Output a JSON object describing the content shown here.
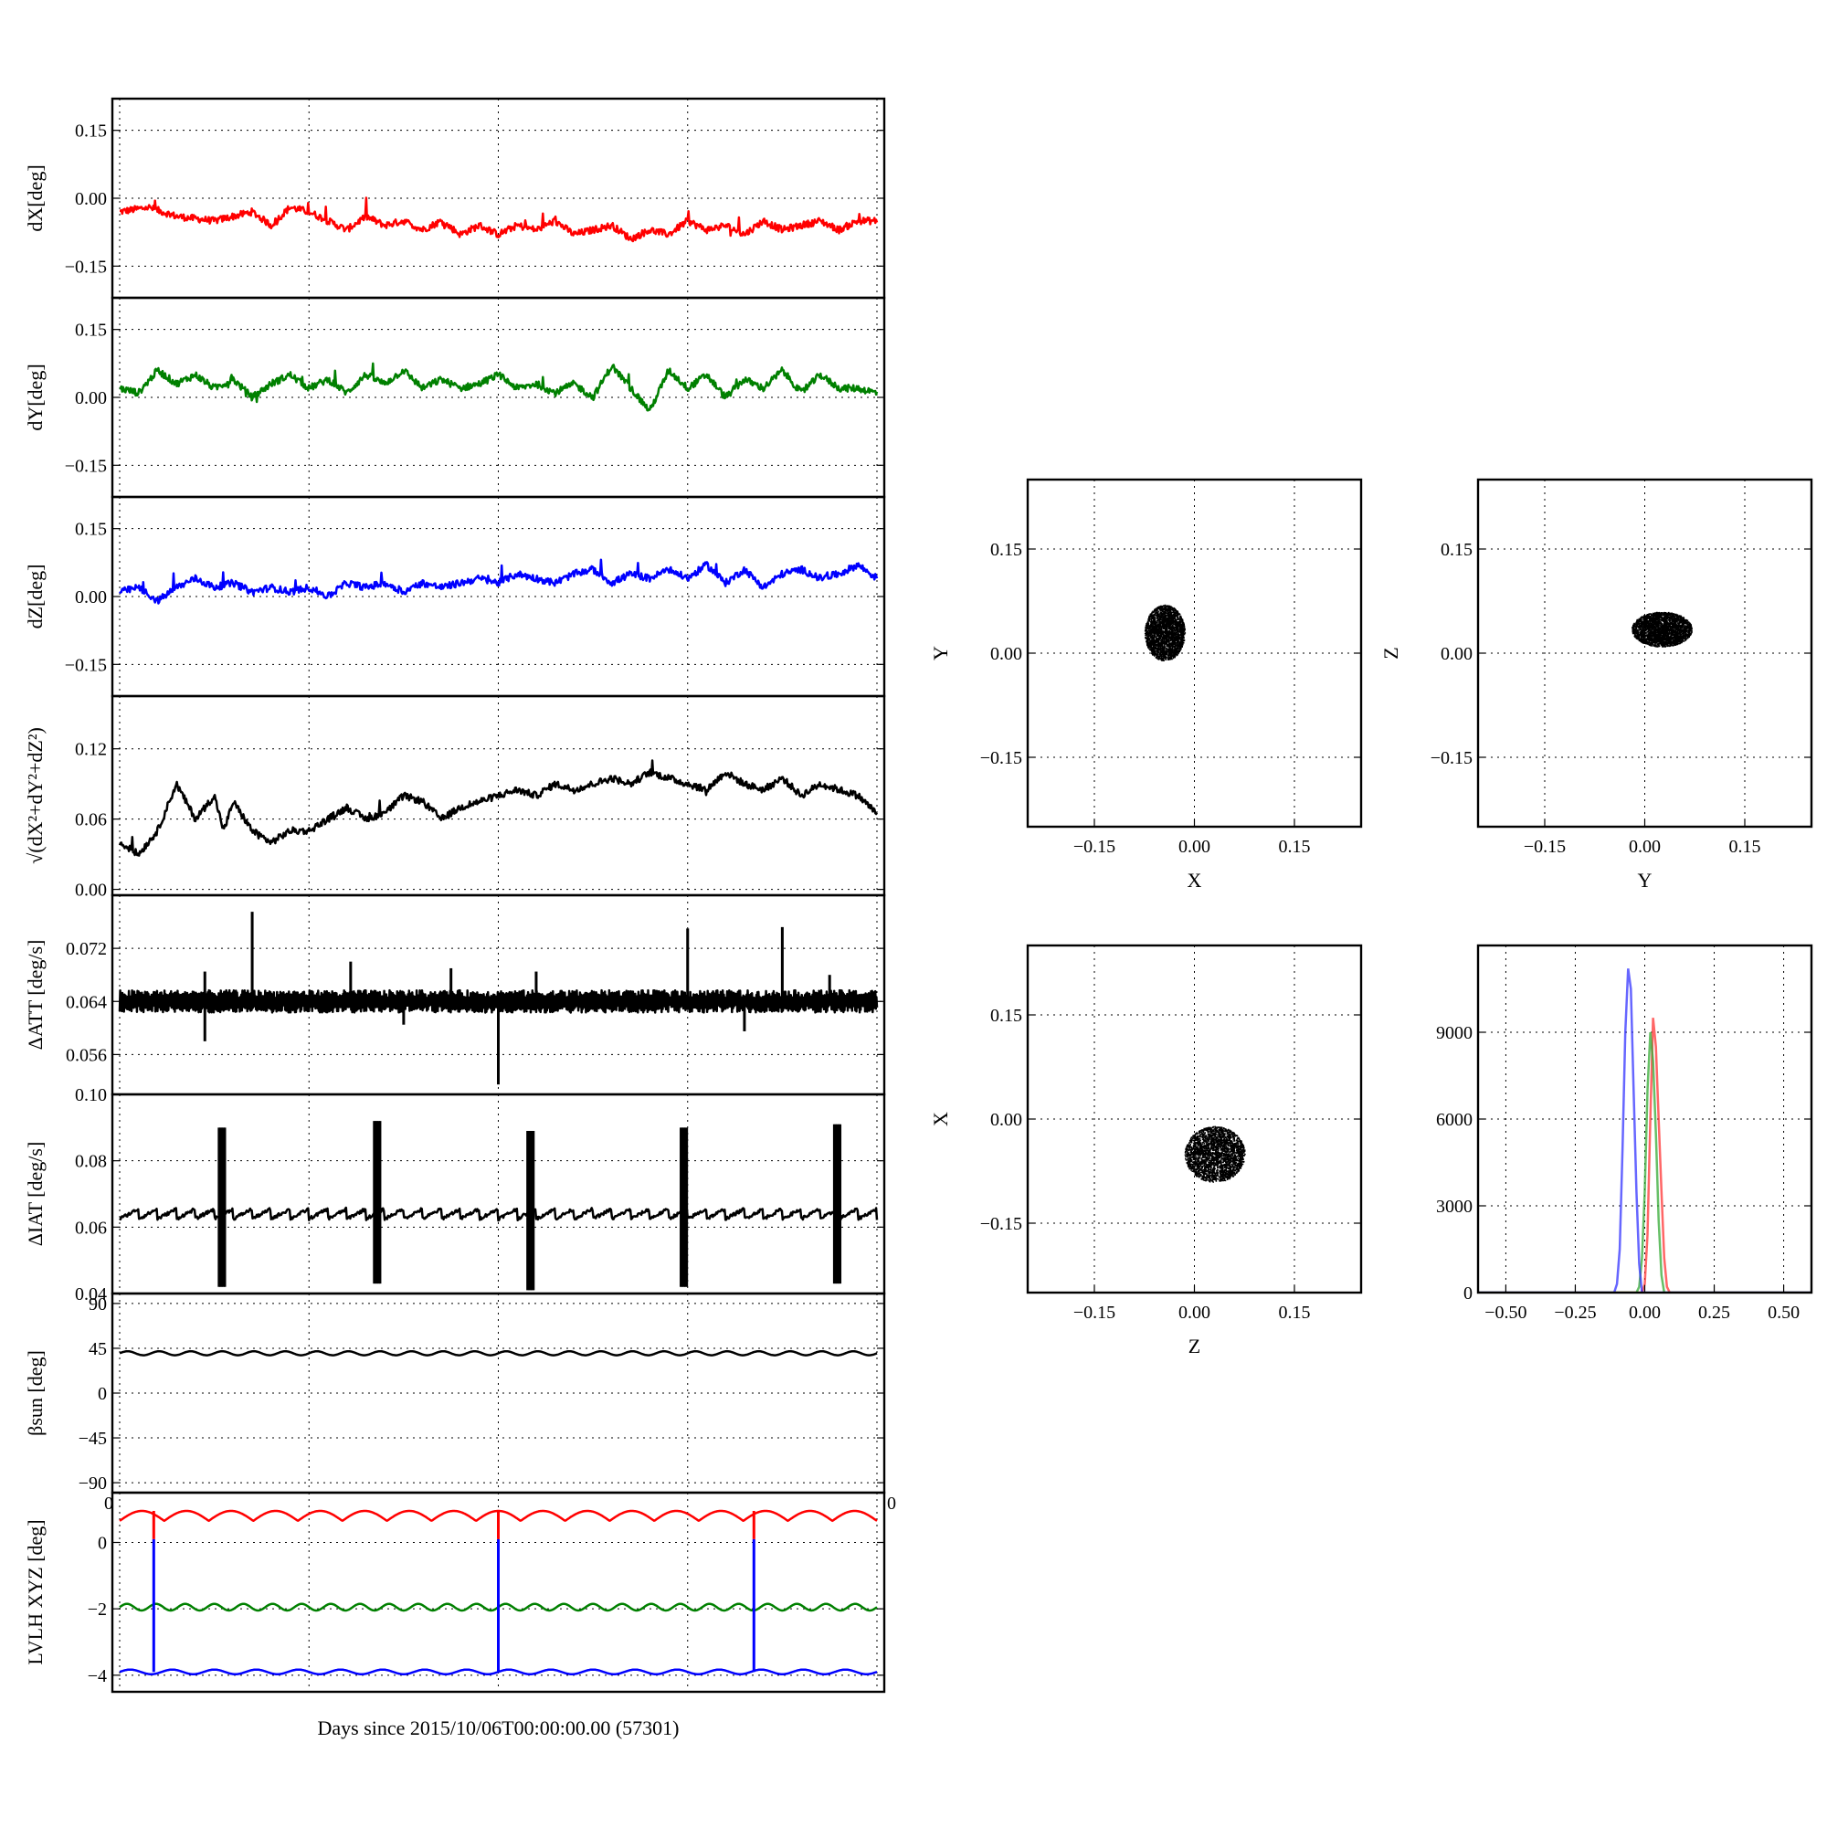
{
  "chart_data": [
    {
      "id": "dx",
      "type": "line",
      "ylabel": "dX[deg]",
      "ylim": [
        -0.22,
        0.22
      ],
      "yticks": [
        0.15,
        0.0,
        -0.15
      ],
      "ytick_labels": [
        "0.15",
        "0.00",
        "−0.15"
      ],
      "xlim": [
        0,
        4
      ],
      "grid": true,
      "series": [
        {
          "color": "#ff0000",
          "linewidth": 2.5,
          "x": [
            0,
            0.15,
            0.3,
            0.5,
            0.7,
            0.8,
            0.9,
            1.0,
            1.1,
            1.2,
            1.3,
            1.4,
            1.5,
            1.6,
            1.7,
            1.8,
            1.9,
            2.0,
            2.1,
            2.2,
            2.3,
            2.4,
            2.5,
            2.6,
            2.7,
            2.8,
            2.9,
            3.0,
            3.1,
            3.2,
            3.3,
            3.4,
            3.5,
            3.6,
            3.7,
            3.8,
            3.9,
            4.0
          ],
          "y": [
            -0.03,
            -0.02,
            -0.04,
            -0.05,
            -0.03,
            -0.06,
            -0.02,
            -0.03,
            -0.05,
            -0.07,
            -0.04,
            -0.06,
            -0.05,
            -0.07,
            -0.05,
            -0.08,
            -0.06,
            -0.08,
            -0.06,
            -0.07,
            -0.05,
            -0.08,
            -0.07,
            -0.06,
            -0.09,
            -0.07,
            -0.08,
            -0.05,
            -0.07,
            -0.06,
            -0.08,
            -0.05,
            -0.07,
            -0.06,
            -0.05,
            -0.07,
            -0.05,
            -0.05
          ]
        }
      ]
    },
    {
      "id": "dy",
      "type": "line",
      "ylabel": "dY[deg]",
      "ylim": [
        -0.22,
        0.22
      ],
      "yticks": [
        0.15,
        0.0,
        -0.15
      ],
      "ytick_labels": [
        "0.15",
        "0.00",
        "−0.15"
      ],
      "xlim": [
        0,
        4
      ],
      "grid": true,
      "series": [
        {
          "color": "#008000",
          "linewidth": 2.5,
          "x": [
            0,
            0.1,
            0.2,
            0.3,
            0.4,
            0.5,
            0.6,
            0.7,
            0.8,
            0.9,
            1.0,
            1.1,
            1.2,
            1.3,
            1.4,
            1.5,
            1.6,
            1.7,
            1.8,
            1.9,
            2.0,
            2.1,
            2.2,
            2.3,
            2.4,
            2.5,
            2.6,
            2.7,
            2.8,
            2.9,
            3.0,
            3.1,
            3.2,
            3.3,
            3.4,
            3.5,
            3.6,
            3.7,
            3.8,
            3.9,
            4.0
          ],
          "y": [
            0.02,
            0.01,
            0.06,
            0.03,
            0.05,
            0.02,
            0.04,
            0.0,
            0.03,
            0.05,
            0.02,
            0.04,
            0.01,
            0.05,
            0.03,
            0.06,
            0.02,
            0.04,
            0.02,
            0.03,
            0.05,
            0.02,
            0.03,
            0.01,
            0.03,
            0.0,
            0.07,
            0.02,
            -0.03,
            0.06,
            0.02,
            0.05,
            0.0,
            0.04,
            0.02,
            0.06,
            0.01,
            0.05,
            0.02,
            0.02,
            0.01
          ]
        }
      ]
    },
    {
      "id": "dz",
      "type": "line",
      "ylabel": "dZ[deg]",
      "ylim": [
        -0.22,
        0.22
      ],
      "yticks": [
        0.15,
        0.0,
        -0.15
      ],
      "ytick_labels": [
        "0.15",
        "0.00",
        "−0.15"
      ],
      "xlim": [
        0,
        4
      ],
      "grid": true,
      "series": [
        {
          "color": "#0000ff",
          "linewidth": 2.5,
          "x": [
            0,
            0.1,
            0.2,
            0.3,
            0.4,
            0.5,
            0.6,
            0.7,
            0.8,
            0.9,
            1.0,
            1.1,
            1.2,
            1.3,
            1.4,
            1.5,
            1.6,
            1.7,
            1.8,
            1.9,
            2.0,
            2.1,
            2.2,
            2.3,
            2.4,
            2.5,
            2.6,
            2.7,
            2.8,
            2.9,
            3.0,
            3.1,
            3.2,
            3.3,
            3.4,
            3.5,
            3.6,
            3.7,
            3.8,
            3.9,
            4.0
          ],
          "y": [
            0.01,
            0.02,
            -0.01,
            0.02,
            0.04,
            0.02,
            0.03,
            0.01,
            0.02,
            0.01,
            0.02,
            0.0,
            0.03,
            0.02,
            0.03,
            0.01,
            0.03,
            0.02,
            0.03,
            0.04,
            0.03,
            0.05,
            0.04,
            0.03,
            0.05,
            0.06,
            0.03,
            0.05,
            0.04,
            0.06,
            0.04,
            0.07,
            0.03,
            0.06,
            0.02,
            0.05,
            0.06,
            0.04,
            0.05,
            0.07,
            0.04
          ]
        }
      ]
    },
    {
      "id": "dr",
      "type": "line",
      "ylabel": "√(dX²+dY²+dZ²)",
      "ylim": [
        -0.005,
        0.165
      ],
      "yticks": [
        0.12,
        0.06,
        0.0
      ],
      "ytick_labels": [
        "0.12",
        "0.06",
        "0.00"
      ],
      "xlim": [
        0,
        4
      ],
      "grid": true,
      "series": [
        {
          "color": "#000000",
          "linewidth": 2.5,
          "x": [
            0,
            0.1,
            0.2,
            0.3,
            0.4,
            0.5,
            0.55,
            0.6,
            0.7,
            0.8,
            0.9,
            1.0,
            1.1,
            1.2,
            1.3,
            1.4,
            1.5,
            1.6,
            1.7,
            1.8,
            1.9,
            2.0,
            2.1,
            2.2,
            2.3,
            2.4,
            2.5,
            2.6,
            2.7,
            2.8,
            2.9,
            3.0,
            3.1,
            3.2,
            3.3,
            3.4,
            3.5,
            3.6,
            3.7,
            3.8,
            3.9,
            4.0
          ],
          "y": [
            0.04,
            0.03,
            0.05,
            0.09,
            0.06,
            0.08,
            0.05,
            0.075,
            0.05,
            0.04,
            0.05,
            0.05,
            0.06,
            0.07,
            0.06,
            0.065,
            0.08,
            0.075,
            0.06,
            0.07,
            0.075,
            0.08,
            0.085,
            0.08,
            0.09,
            0.085,
            0.09,
            0.095,
            0.09,
            0.1,
            0.095,
            0.09,
            0.085,
            0.1,
            0.09,
            0.085,
            0.095,
            0.08,
            0.09,
            0.085,
            0.08,
            0.065
          ]
        }
      ]
    },
    {
      "id": "datt",
      "type": "line",
      "ylabel": "ΔATT [deg/s]",
      "ylim": [
        0.05,
        0.08
      ],
      "yticks": [
        0.072,
        0.064,
        0.056
      ],
      "ytick_labels": [
        "0.072",
        "0.064",
        "0.056"
      ],
      "xlim": [
        0,
        4
      ],
      "grid": true,
      "series": [
        {
          "color": "#000000",
          "linewidth": 2.5,
          "baseline": 0.064,
          "jitter": 0.0012,
          "spikes": [
            {
              "x": 0.45,
              "y": 0.0685
            },
            {
              "x": 0.45,
              "y": 0.058
            },
            {
              "x": 0.7,
              "y": 0.0775
            },
            {
              "x": 1.22,
              "y": 0.07
            },
            {
              "x": 1.5,
              "y": 0.0605
            },
            {
              "x": 1.75,
              "y": 0.069
            },
            {
              "x": 2.0,
              "y": 0.0515
            },
            {
              "x": 2.2,
              "y": 0.0685
            },
            {
              "x": 3.0,
              "y": 0.075
            },
            {
              "x": 3.3,
              "y": 0.0595
            },
            {
              "x": 3.5,
              "y": 0.0752
            },
            {
              "x": 3.75,
              "y": 0.068
            }
          ]
        }
      ]
    },
    {
      "id": "diat",
      "type": "line",
      "ylabel": "ΔIAT [deg/s]",
      "ylim": [
        0.04,
        0.1
      ],
      "yticks": [
        0.1,
        0.08,
        0.06,
        0.04
      ],
      "ytick_labels": [
        "0.10",
        "0.08",
        "0.06",
        "0.04"
      ],
      "xlim": [
        0,
        4
      ],
      "grid": true,
      "series": [
        {
          "color": "#000000",
          "linewidth": 2.5,
          "baseline": 0.064,
          "sawtooth": 0.003,
          "bursts": [
            {
              "x": 0.54,
              "high": 0.09,
              "low": 0.042
            },
            {
              "x": 1.36,
              "high": 0.092,
              "low": 0.043
            },
            {
              "x": 2.17,
              "high": 0.089,
              "low": 0.041
            },
            {
              "x": 2.98,
              "high": 0.09,
              "low": 0.042
            },
            {
              "x": 3.79,
              "high": 0.091,
              "low": 0.043
            }
          ]
        }
      ]
    },
    {
      "id": "beta",
      "type": "line",
      "ylabel": "βsun [deg]",
      "ylim": [
        -100,
        100
      ],
      "yticks": [
        90,
        45,
        0,
        -45,
        -90
      ],
      "ytick_labels": [
        "90",
        "45",
        "0",
        "−45",
        "−90"
      ],
      "xlim": [
        0,
        4
      ],
      "grid": true,
      "series": [
        {
          "color": "#000000",
          "linewidth": 2.5,
          "mean": 40,
          "amplitude": 2,
          "cycles": 24
        }
      ]
    },
    {
      "id": "lvlh",
      "type": "line",
      "ylabel": "LVLH XYZ [deg]",
      "ylim": [
        -4.5,
        1.5
      ],
      "yticks": [
        0,
        -2,
        -4
      ],
      "ytick_labels": [
        "0",
        "−2",
        "−4"
      ],
      "xlim": [
        0,
        4
      ],
      "grid": true,
      "xlabel": "Days since 2015/10/06T00:00:00.00 (57301)",
      "xtick_labels_top": [
        "0",
        "0"
      ],
      "series": [
        {
          "color": "#ff0000",
          "linewidth": 2.5,
          "mean": 0.8,
          "amplitude": 0.3,
          "cycles": 17
        },
        {
          "color": "#008000",
          "linewidth": 2.5,
          "mean": -1.95,
          "amplitude": 0.1,
          "cycles": 26
        },
        {
          "color": "#0000ff",
          "linewidth": 2.5,
          "mean": -3.9,
          "amplitude": 0.07,
          "cycles": 18,
          "jumps": [
            {
              "x": 0.18,
              "top": 0.1
            },
            {
              "x": 2.0,
              "top": 0.1
            },
            {
              "x": 3.35,
              "top": 0.1
            }
          ]
        }
      ]
    },
    {
      "id": "xy",
      "type": "scatter",
      "xlabel": "X",
      "ylabel": "Y",
      "xlim": [
        -0.25,
        0.25
      ],
      "ylim": [
        -0.25,
        0.25
      ],
      "xticks": [
        -0.15,
        0.0,
        0.15
      ],
      "yticks": [
        0.15,
        0.0,
        -0.15
      ],
      "xtick_labels": [
        "−0.15",
        "0.00",
        "0.15"
      ],
      "ytick_labels": [
        "0.15",
        "0.00",
        "−0.15"
      ],
      "grid": true,
      "color": "#000000",
      "cloud": {
        "cx": -0.045,
        "cy": 0.03,
        "rx": 0.03,
        "ry": 0.04
      }
    },
    {
      "id": "yz",
      "type": "scatter",
      "xlabel": "Y",
      "ylabel": "Z",
      "xlim": [
        -0.25,
        0.25
      ],
      "ylim": [
        -0.25,
        0.25
      ],
      "xticks": [
        -0.15,
        0.0,
        0.15
      ],
      "yticks": [
        0.15,
        0.0,
        -0.15
      ],
      "xtick_labels": [
        "−0.15",
        "0.00",
        "0.15"
      ],
      "ytick_labels": [
        "0.15",
        "0.00",
        "−0.15"
      ],
      "grid": true,
      "color": "#000000",
      "cloud": {
        "cx": 0.025,
        "cy": 0.035,
        "rx": 0.045,
        "ry": 0.025
      }
    },
    {
      "id": "zx",
      "type": "scatter",
      "xlabel": "Z",
      "ylabel": "X",
      "xlim": [
        -0.25,
        0.25
      ],
      "ylim": [
        -0.25,
        0.25
      ],
      "xticks": [
        -0.15,
        0.0,
        0.15
      ],
      "yticks": [
        0.15,
        0.0,
        -0.15
      ],
      "xtick_labels": [
        "−0.15",
        "0.00",
        "0.15"
      ],
      "ytick_labels": [
        "0.15",
        "0.00",
        "−0.15"
      ],
      "grid": true,
      "color": "#000000",
      "cloud": {
        "cx": 0.03,
        "cy": -0.05,
        "rx": 0.045,
        "ry": 0.04
      }
    },
    {
      "id": "hist",
      "type": "line",
      "xlim": [
        -0.6,
        0.6
      ],
      "ylim": [
        0,
        12000
      ],
      "xticks": [
        -0.5,
        -0.25,
        0.0,
        0.25,
        0.5
      ],
      "yticks": [
        9000,
        6000,
        3000,
        0
      ],
      "xtick_labels": [
        "−0.50",
        "−0.25",
        "0.00",
        "0.25",
        "0.50"
      ],
      "ytick_labels": [
        "9000",
        "6000",
        "3000",
        "0"
      ],
      "grid": true,
      "series": [
        {
          "color": "#ff3333",
          "alpha": 0.75,
          "x": [
            -0.6,
            -0.01,
            0.0,
            0.01,
            0.02,
            0.03,
            0.04,
            0.05,
            0.06,
            0.07,
            0.08,
            0.09,
            0.6
          ],
          "y": [
            0,
            0,
            300,
            2000,
            6000,
            9500,
            8500,
            6000,
            3500,
            1200,
            200,
            0,
            0
          ]
        },
        {
          "color": "#33aa33",
          "alpha": 0.75,
          "x": [
            -0.6,
            -0.03,
            -0.02,
            -0.01,
            0.0,
            0.01,
            0.02,
            0.03,
            0.04,
            0.05,
            0.06,
            0.07,
            0.6
          ],
          "y": [
            0,
            0,
            200,
            1200,
            3500,
            7000,
            9000,
            8000,
            5500,
            2500,
            600,
            0,
            0
          ]
        },
        {
          "color": "#3333ff",
          "alpha": 0.75,
          "x": [
            -0.6,
            -0.11,
            -0.1,
            -0.09,
            -0.08,
            -0.07,
            -0.06,
            -0.05,
            -0.04,
            -0.03,
            -0.02,
            -0.01,
            0.6
          ],
          "y": [
            0,
            0,
            300,
            1500,
            5000,
            9000,
            11200,
            10500,
            7000,
            3500,
            1000,
            0,
            0
          ]
        }
      ]
    }
  ]
}
